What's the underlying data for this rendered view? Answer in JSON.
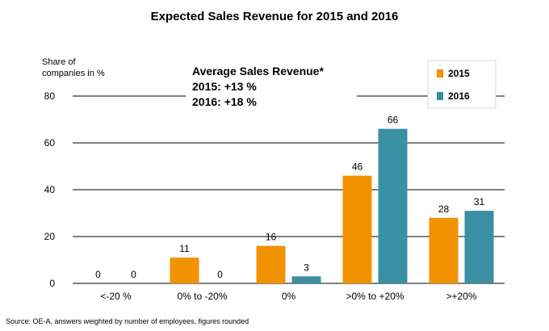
{
  "chart_data": {
    "type": "bar",
    "title": "Expected Sales Revenue for 2015 and 2016",
    "ylabel_line1": "Share of",
    "ylabel_line2": "companies in %",
    "xlabel": "",
    "ylim": [
      0,
      80
    ],
    "yticks": [
      0,
      20,
      40,
      60,
      80
    ],
    "grid": true,
    "categories": [
      "<-20 %",
      "0% to -20%",
      "0%",
      ">0% to +20%",
      ">+20%"
    ],
    "series": [
      {
        "name": "2015",
        "color": "#F39200",
        "values": [
          0,
          11,
          16,
          46,
          28
        ]
      },
      {
        "name": "2016",
        "color": "#3A8FA3",
        "values": [
          0,
          0,
          3,
          66,
          31
        ]
      }
    ],
    "legend_position": "top-right",
    "annotation": {
      "title": "Average Sales Revenue*",
      "lines": [
        "2015: +13 %",
        "2016: +18 %"
      ]
    },
    "source": "Source: OE-A, answers weighted by number of employees, figures rounded"
  }
}
